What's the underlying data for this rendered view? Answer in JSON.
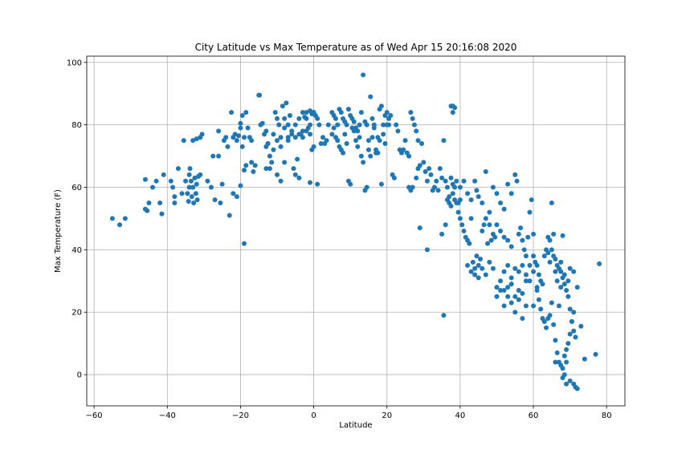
{
  "chart_data": {
    "type": "scatter",
    "title": "City Latitude vs Max Temperature as of Wed Apr 15 20:16:08 2020",
    "xlabel": "Latitude",
    "ylabel": "Max Temperature (F)",
    "xlim": [
      -62,
      85
    ],
    "ylim": [
      -10,
      102
    ],
    "xticks": [
      -60,
      -40,
      -20,
      0,
      20,
      40,
      60,
      80
    ],
    "yticks": [
      0,
      20,
      40,
      60,
      80,
      100
    ],
    "grid": true,
    "marker_color": "#1f77b4",
    "points": [
      [
        -55,
        50
      ],
      [
        -53,
        48
      ],
      [
        -51.5,
        50
      ],
      [
        -46,
        53
      ],
      [
        -45.5,
        52.5
      ],
      [
        -46,
        62.5
      ],
      [
        -45,
        55
      ],
      [
        -44,
        60
      ],
      [
        -43,
        62
      ],
      [
        -42,
        55
      ],
      [
        -41.5,
        51.5
      ],
      [
        -41,
        64
      ],
      [
        -39,
        62
      ],
      [
        -38.5,
        60
      ],
      [
        -38,
        57
      ],
      [
        -38,
        55
      ],
      [
        -37,
        66
      ],
      [
        -36,
        58
      ],
      [
        -35.5,
        75
      ],
      [
        -35,
        62
      ],
      [
        -34.5,
        58
      ],
      [
        -34.2,
        55.5
      ],
      [
        -34,
        60
      ],
      [
        -34,
        64
      ],
      [
        -33.8,
        66
      ],
      [
        -33.5,
        62
      ],
      [
        -33.3,
        57
      ],
      [
        -33,
        60
      ],
      [
        -32.8,
        55
      ],
      [
        -32.5,
        63
      ],
      [
        -32.2,
        58
      ],
      [
        -32,
        61
      ],
      [
        -31.8,
        56
      ],
      [
        -31.5,
        63.5
      ],
      [
        -31,
        64
      ],
      [
        -33,
        75
      ],
      [
        -32,
        75.5
      ],
      [
        -31,
        76
      ],
      [
        -30.5,
        77
      ],
      [
        -29,
        62
      ],
      [
        -28,
        60
      ],
      [
        -27.5,
        70
      ],
      [
        -27,
        56
      ],
      [
        -26,
        70
      ],
      [
        -26,
        78
      ],
      [
        -25.5,
        55
      ],
      [
        -25,
        61
      ],
      [
        -24.5,
        75
      ],
      [
        -24,
        76
      ],
      [
        -23.5,
        73
      ],
      [
        -23,
        51
      ],
      [
        -22.5,
        84
      ],
      [
        -22,
        76
      ],
      [
        -21.5,
        77
      ],
      [
        -21,
        75
      ],
      [
        -20.5,
        76.5
      ],
      [
        -20,
        79
      ],
      [
        -20,
        80.5
      ],
      [
        -19.5,
        83
      ],
      [
        -19,
        76
      ],
      [
        -18.5,
        84
      ],
      [
        -18,
        79
      ],
      [
        -17.5,
        76
      ],
      [
        -17,
        75
      ],
      [
        -22,
        58
      ],
      [
        -21,
        57
      ],
      [
        -20,
        60.5
      ],
      [
        -19.5,
        73
      ],
      [
        -19,
        65.5
      ],
      [
        -18.5,
        67
      ],
      [
        -19,
        42
      ],
      [
        -17,
        68
      ],
      [
        -16.5,
        65
      ],
      [
        -16,
        67
      ],
      [
        -15,
        89.5
      ],
      [
        -14.8,
        89.5
      ],
      [
        -14.5,
        80
      ],
      [
        -14,
        80.5
      ],
      [
        -13.5,
        77
      ],
      [
        -13,
        78
      ],
      [
        -12.5,
        74
      ],
      [
        -12,
        70
      ],
      [
        -11.5,
        68
      ],
      [
        -11,
        72
      ],
      [
        -10.5,
        84
      ],
      [
        -10,
        82
      ],
      [
        -9.5,
        80
      ],
      [
        -9,
        76
      ],
      [
        -8.5,
        86
      ],
      [
        -8,
        82
      ],
      [
        -7.5,
        87
      ],
      [
        -7,
        75
      ],
      [
        -6.5,
        83
      ],
      [
        -6,
        78
      ],
      [
        -5.5,
        66
      ],
      [
        -5,
        64
      ],
      [
        -4.5,
        69
      ],
      [
        -4,
        63
      ],
      [
        -3.5,
        77
      ],
      [
        -3,
        76
      ],
      [
        -2.5,
        82.5
      ],
      [
        -2,
        82
      ],
      [
        -1.5,
        79
      ],
      [
        -1,
        80
      ],
      [
        -0.5,
        83.5
      ],
      [
        0,
        84
      ],
      [
        0.5,
        83
      ],
      [
        1,
        82
      ],
      [
        1.5,
        80
      ],
      [
        2,
        74
      ],
      [
        2.5,
        76
      ],
      [
        3,
        74
      ],
      [
        3.5,
        75
      ],
      [
        4,
        80
      ],
      [
        -13,
        66
      ],
      [
        -12,
        66
      ],
      [
        -10,
        64
      ],
      [
        -9,
        62
      ],
      [
        -8,
        68
      ],
      [
        -7,
        76
      ],
      [
        -6,
        78
      ],
      [
        -5,
        80
      ],
      [
        -4,
        82
      ],
      [
        -3,
        84
      ],
      [
        -2,
        78
      ],
      [
        -1,
        77
      ],
      [
        -0.5,
        72
      ],
      [
        0,
        73
      ],
      [
        1,
        61
      ],
      [
        -1,
        61.5
      ],
      [
        -13,
        73
      ],
      [
        -12.5,
        74
      ],
      [
        -11,
        77
      ],
      [
        -10,
        75
      ],
      [
        -9,
        73
      ],
      [
        -8,
        79
      ],
      [
        -7,
        80
      ],
      [
        -6,
        77
      ],
      [
        -5,
        76
      ],
      [
        -4,
        77
      ],
      [
        -3,
        78
      ],
      [
        -2,
        84
      ],
      [
        -1,
        84.5
      ],
      [
        0,
        84
      ],
      [
        5,
        84
      ],
      [
        5.5,
        83
      ],
      [
        6,
        82
      ],
      [
        6.5,
        80
      ],
      [
        7,
        85
      ],
      [
        7.5,
        84
      ],
      [
        8,
        82
      ],
      [
        8.5,
        81
      ],
      [
        9,
        80
      ],
      [
        9.5,
        85
      ],
      [
        10,
        83
      ],
      [
        10.5,
        82
      ],
      [
        11,
        81
      ],
      [
        11.5,
        79
      ],
      [
        12,
        78
      ],
      [
        12.5,
        80
      ],
      [
        13,
        84
      ],
      [
        13.5,
        96
      ],
      [
        14,
        81
      ],
      [
        14.5,
        80
      ],
      [
        15,
        75
      ],
      [
        15.5,
        89
      ],
      [
        16,
        82
      ],
      [
        16.5,
        80
      ],
      [
        17,
        72
      ],
      [
        17.5,
        76
      ],
      [
        18,
        85
      ],
      [
        18.5,
        86
      ],
      [
        19,
        80
      ],
      [
        19.5,
        83
      ],
      [
        20,
        84
      ],
      [
        20.5,
        80
      ],
      [
        5,
        77
      ],
      [
        5.5,
        79
      ],
      [
        6,
        76
      ],
      [
        6.5,
        75
      ],
      [
        7,
        73
      ],
      [
        7.5,
        72
      ],
      [
        8,
        71
      ],
      [
        8.5,
        77
      ],
      [
        9,
        74
      ],
      [
        9.5,
        62
      ],
      [
        10,
        61
      ],
      [
        10.5,
        79
      ],
      [
        11,
        78
      ],
      [
        11.5,
        75
      ],
      [
        12,
        73
      ],
      [
        12.5,
        76
      ],
      [
        13,
        70
      ],
      [
        13.5,
        68
      ],
      [
        14,
        59
      ],
      [
        14.5,
        60
      ],
      [
        15,
        72
      ],
      [
        15.5,
        70
      ],
      [
        16,
        76
      ],
      [
        16.5,
        79
      ],
      [
        17,
        71
      ],
      [
        17.5,
        71
      ],
      [
        18,
        75
      ],
      [
        18.5,
        61
      ],
      [
        19,
        77
      ],
      [
        19.5,
        74
      ],
      [
        20,
        80
      ],
      [
        20.5,
        82
      ],
      [
        21,
        83
      ],
      [
        21.5,
        64
      ],
      [
        22,
        63
      ],
      [
        22.5,
        80
      ],
      [
        23,
        78
      ],
      [
        23.5,
        72
      ],
      [
        24,
        71
      ],
      [
        24.5,
        72
      ],
      [
        25,
        75
      ],
      [
        25.5,
        71
      ],
      [
        26,
        70
      ],
      [
        26.5,
        84
      ],
      [
        27,
        82
      ],
      [
        27.5,
        80
      ],
      [
        28,
        78
      ],
      [
        28.5,
        75
      ],
      [
        26,
        60
      ],
      [
        26.5,
        59
      ],
      [
        27,
        60
      ],
      [
        28,
        63
      ],
      [
        28.5,
        66
      ],
      [
        29,
        67
      ],
      [
        29.5,
        74
      ],
      [
        30,
        68
      ],
      [
        30.5,
        65
      ],
      [
        31,
        62
      ],
      [
        31.5,
        66
      ],
      [
        32,
        64
      ],
      [
        32.5,
        59
      ],
      [
        33,
        60
      ],
      [
        33.5,
        62
      ],
      [
        34,
        59
      ],
      [
        29,
        47
      ],
      [
        31,
        40
      ],
      [
        34.5,
        66
      ],
      [
        35,
        63
      ],
      [
        35.5,
        75
      ],
      [
        36,
        62
      ],
      [
        36.5,
        60
      ],
      [
        37,
        57
      ],
      [
        37.5,
        63
      ],
      [
        38,
        58
      ],
      [
        38.5,
        60
      ],
      [
        39,
        62
      ],
      [
        39.5,
        55
      ],
      [
        40,
        56
      ],
      [
        38,
        84
      ],
      [
        38.5,
        85.5
      ],
      [
        37.5,
        86
      ],
      [
        38,
        86
      ],
      [
        35,
        45
      ],
      [
        35.5,
        19
      ],
      [
        36,
        48
      ],
      [
        36.5,
        56
      ],
      [
        37,
        55
      ],
      [
        37.5,
        54
      ],
      [
        38,
        61
      ],
      [
        38.5,
        56
      ],
      [
        39,
        55
      ],
      [
        39.5,
        52
      ],
      [
        40,
        50
      ],
      [
        40.5,
        48
      ],
      [
        41,
        46
      ],
      [
        41.5,
        44
      ],
      [
        42,
        43
      ],
      [
        42.5,
        42
      ],
      [
        43,
        50
      ],
      [
        43.5,
        36
      ],
      [
        44,
        34
      ],
      [
        44.5,
        38
      ],
      [
        45,
        35
      ],
      [
        45.5,
        37
      ],
      [
        46,
        46
      ],
      [
        46.5,
        48
      ],
      [
        47,
        50
      ],
      [
        47.5,
        42
      ],
      [
        48,
        48
      ],
      [
        48.5,
        43
      ],
      [
        49,
        45
      ],
      [
        49.5,
        44
      ],
      [
        40,
        60
      ],
      [
        41,
        62
      ],
      [
        42,
        58
      ],
      [
        43,
        56
      ],
      [
        44,
        62
      ],
      [
        44.5,
        59
      ],
      [
        45,
        57
      ],
      [
        46,
        55
      ],
      [
        47,
        65
      ],
      [
        48,
        52
      ],
      [
        49,
        60
      ],
      [
        50,
        58
      ],
      [
        51,
        55
      ],
      [
        52,
        53
      ],
      [
        53,
        61
      ],
      [
        54,
        58
      ],
      [
        42,
        35
      ],
      [
        43,
        33
      ],
      [
        44,
        32
      ],
      [
        45,
        31
      ],
      [
        46,
        34
      ],
      [
        47,
        32
      ],
      [
        48,
        36
      ],
      [
        49,
        34
      ],
      [
        50,
        28
      ],
      [
        51,
        30
      ],
      [
        52,
        33
      ],
      [
        53,
        35
      ],
      [
        54,
        31
      ],
      [
        55,
        34
      ],
      [
        56,
        33
      ],
      [
        57,
        35
      ],
      [
        50,
        48
      ],
      [
        51,
        46
      ],
      [
        52,
        44
      ],
      [
        53,
        43
      ],
      [
        54,
        41
      ],
      [
        55,
        64
      ],
      [
        55.5,
        62
      ],
      [
        56,
        45
      ],
      [
        56.5,
        47
      ],
      [
        57,
        43
      ],
      [
        57.5,
        40
      ],
      [
        58,
        38
      ],
      [
        58.5,
        44
      ],
      [
        59,
        52
      ],
      [
        59.5,
        56
      ],
      [
        60,
        45
      ],
      [
        50,
        25
      ],
      [
        51,
        27
      ],
      [
        52,
        22
      ],
      [
        53,
        28
      ],
      [
        54,
        29
      ],
      [
        55,
        25
      ],
      [
        56,
        27
      ],
      [
        57,
        26
      ],
      [
        58,
        30
      ],
      [
        59,
        35
      ],
      [
        60,
        33
      ],
      [
        61,
        28
      ],
      [
        61.5,
        24
      ],
      [
        62,
        21
      ],
      [
        62.5,
        18
      ],
      [
        63,
        17
      ],
      [
        60,
        38
      ],
      [
        60.5,
        36
      ],
      [
        61,
        35
      ],
      [
        61.5,
        32
      ],
      [
        62,
        30
      ],
      [
        62.5,
        29
      ],
      [
        63,
        38
      ],
      [
        63.5,
        40
      ],
      [
        64,
        39
      ],
      [
        64.5,
        36
      ],
      [
        65,
        55
      ],
      [
        65.5,
        45
      ],
      [
        66,
        33
      ],
      [
        66.5,
        30
      ],
      [
        67,
        22
      ],
      [
        67.5,
        28
      ],
      [
        63,
        17
      ],
      [
        63.5,
        15
      ],
      [
        64,
        18
      ],
      [
        64.5,
        19
      ],
      [
        65,
        23
      ],
      [
        65.5,
        16
      ],
      [
        66,
        11
      ],
      [
        66.5,
        7
      ],
      [
        67,
        4
      ],
      [
        67.5,
        3
      ],
      [
        68,
        2
      ],
      [
        68.5,
        0
      ],
      [
        69,
        8
      ],
      [
        69.5,
        10
      ],
      [
        70,
        13
      ],
      [
        70.5,
        17
      ],
      [
        68,
        -1
      ],
      [
        69,
        -3
      ],
      [
        70,
        -2
      ],
      [
        71,
        -3
      ],
      [
        71.5,
        -4
      ],
      [
        72,
        -4.5
      ],
      [
        73,
        15.5
      ],
      [
        74,
        5
      ],
      [
        71,
        20
      ],
      [
        69.5,
        30
      ],
      [
        68.5,
        32
      ],
      [
        67.5,
        36
      ],
      [
        68,
        44.5
      ],
      [
        70,
        34
      ],
      [
        71,
        33
      ],
      [
        72,
        28
      ],
      [
        64,
        44
      ],
      [
        64.5,
        43
      ],
      [
        65,
        40
      ],
      [
        65.5,
        38
      ],
      [
        66,
        37
      ],
      [
        66.5,
        35
      ],
      [
        67,
        34
      ],
      [
        67.5,
        33
      ],
      [
        68,
        31
      ],
      [
        68.5,
        29
      ],
      [
        69,
        27
      ],
      [
        69.5,
        25
      ],
      [
        70,
        21
      ],
      [
        70.5,
        17
      ],
      [
        71,
        14
      ],
      [
        71.5,
        12
      ],
      [
        77,
        6.5
      ],
      [
        78,
        35.5
      ],
      [
        66,
        4
      ],
      [
        68.5,
        6
      ],
      [
        69,
        4
      ],
      [
        58,
        22
      ],
      [
        57,
        18
      ],
      [
        56,
        24
      ],
      [
        55,
        20
      ],
      [
        54,
        23
      ],
      [
        53,
        25
      ],
      [
        52,
        27
      ],
      [
        61,
        27
      ],
      [
        60,
        22
      ],
      [
        59,
        30
      ],
      [
        58,
        32
      ]
    ]
  }
}
